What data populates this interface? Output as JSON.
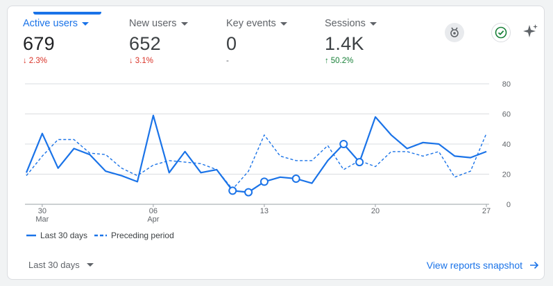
{
  "metrics": [
    {
      "label": "Active users",
      "value": "679",
      "change": "2.3%",
      "direction": "down"
    },
    {
      "label": "New users",
      "value": "652",
      "change": "3.1%",
      "direction": "down"
    },
    {
      "label": "Key events",
      "value": "0",
      "change": "-",
      "direction": "neutral"
    },
    {
      "label": "Sessions",
      "value": "1.4K",
      "change": "50.2%",
      "direction": "up"
    }
  ],
  "icons": [
    "insights-badge-icon",
    "check-circle-icon",
    "sparkle-icon"
  ],
  "colors": {
    "accent": "#1a73e8",
    "down": "#d93025",
    "up": "#188038",
    "grid": "#dadce0"
  },
  "chart_data": {
    "type": "line",
    "x_tick_labels": [
      {
        "day": 1,
        "label": "30",
        "sub": "Mar"
      },
      {
        "day": 8,
        "label": "06",
        "sub": "Apr"
      },
      {
        "day": 15,
        "label": "13",
        "sub": ""
      },
      {
        "day": 22,
        "label": "20",
        "sub": ""
      },
      {
        "day": 29,
        "label": "27",
        "sub": ""
      }
    ],
    "y_ticks": [
      0,
      20,
      40,
      60,
      80
    ],
    "ylim": [
      0,
      80
    ],
    "series": [
      {
        "name": "Last 30 days",
        "style": "solid",
        "values": [
          21,
          47,
          24,
          37,
          33,
          22,
          19,
          15,
          59,
          21,
          35,
          21,
          23,
          9,
          8,
          15,
          18,
          17,
          14,
          29,
          40,
          28,
          58,
          46,
          37,
          41,
          40,
          32,
          31,
          35
        ],
        "markers": [
          13,
          14,
          15,
          17,
          20,
          21
        ]
      },
      {
        "name": "Preceding period",
        "style": "dashed",
        "values": [
          19,
          32,
          43,
          43,
          34,
          33,
          24,
          19,
          26,
          29,
          28,
          27,
          23,
          10,
          22,
          46,
          32,
          29,
          29,
          39,
          23,
          29,
          25,
          35,
          35,
          32,
          35,
          18,
          22,
          47
        ]
      }
    ],
    "grid": true,
    "legend_position": "bottom-left"
  },
  "footer": {
    "date_range": "Last 30 days",
    "link": "View reports snapshot"
  }
}
